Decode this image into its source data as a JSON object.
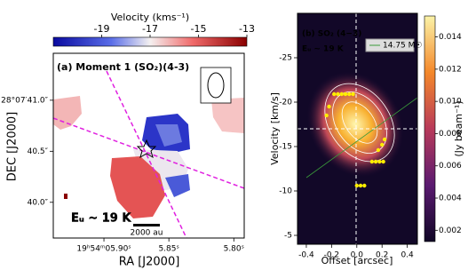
{
  "chart_data": [
    {
      "type": "map",
      "title": "(a) Moment 1 (SO₂)(4-3)",
      "annotation": "Eᵤ ~ 19 K",
      "scale_bar": "2000 au",
      "x_label": "RA [J2000]",
      "y_label": "DEC [J2000]",
      "xlim": [
        5.939,
        5.792
      ],
      "xticks": [
        {
          "value": 5.9,
          "label": "19ʰ54ᵐ05.90ˢ"
        },
        {
          "value": 5.85,
          "label": "5.85ˢ"
        },
        {
          "value": 5.8,
          "label": "5.80ˢ"
        }
      ],
      "ylim": [
        39.65,
        41.46
      ],
      "yticks": [
        {
          "value": 41.0,
          "label": "28°07′41.0″"
        },
        {
          "value": 40.5,
          "label": "40.5″"
        },
        {
          "value": 40.0,
          "label": "40.0″"
        }
      ],
      "colorbar": {
        "label": "Velocity (kms⁻¹)",
        "lim": [
          -21,
          -13
        ],
        "ticks": [
          -19,
          -17,
          -15,
          -13
        ]
      }
    },
    {
      "type": "pv",
      "title": "(b) SO₂ (4−3)",
      "annotation": "Eᵤ ~ 19 K",
      "legend": "14.75 M☉",
      "x_label": "Offset [arcsec]",
      "y_label": "Velocity [km/s]",
      "xlim": [
        -0.47,
        0.48
      ],
      "xticks": [
        -0.4,
        -0.2,
        {
          "value": 0.0,
          "label": "0.0"
        },
        0.2,
        0.4
      ],
      "ylim": [
        -4,
        -30
      ],
      "yticks": [
        -25,
        -20,
        -15,
        -10,
        -5
      ],
      "points": {
        "color": "#ffee00",
        "x": [
          -0.18,
          -0.15,
          -0.12,
          -0.09,
          -0.06,
          -0.03,
          -0.22,
          -0.24,
          0.17,
          0.2,
          0.22,
          0.12,
          0.15,
          0.18,
          0.21,
          0.0,
          0.03,
          0.06
        ],
        "y": [
          -20.9,
          -20.9,
          -20.9,
          -20.9,
          -20.9,
          -20.9,
          -19.5,
          -18.5,
          -14.6,
          -15.2,
          -15.8,
          -13.3,
          -13.3,
          -13.3,
          -13.3,
          -10.6,
          -10.6,
          -10.6
        ]
      },
      "colorbar": {
        "label": "(Jy beam⁻¹)",
        "lim": [
          0.0013,
          0.0153
        ],
        "ticks": [
          0.002,
          0.004,
          0.006,
          0.008,
          {
            "value": 0.01,
            "label": "0.010"
          },
          0.012,
          0.014
        ]
      }
    }
  ]
}
